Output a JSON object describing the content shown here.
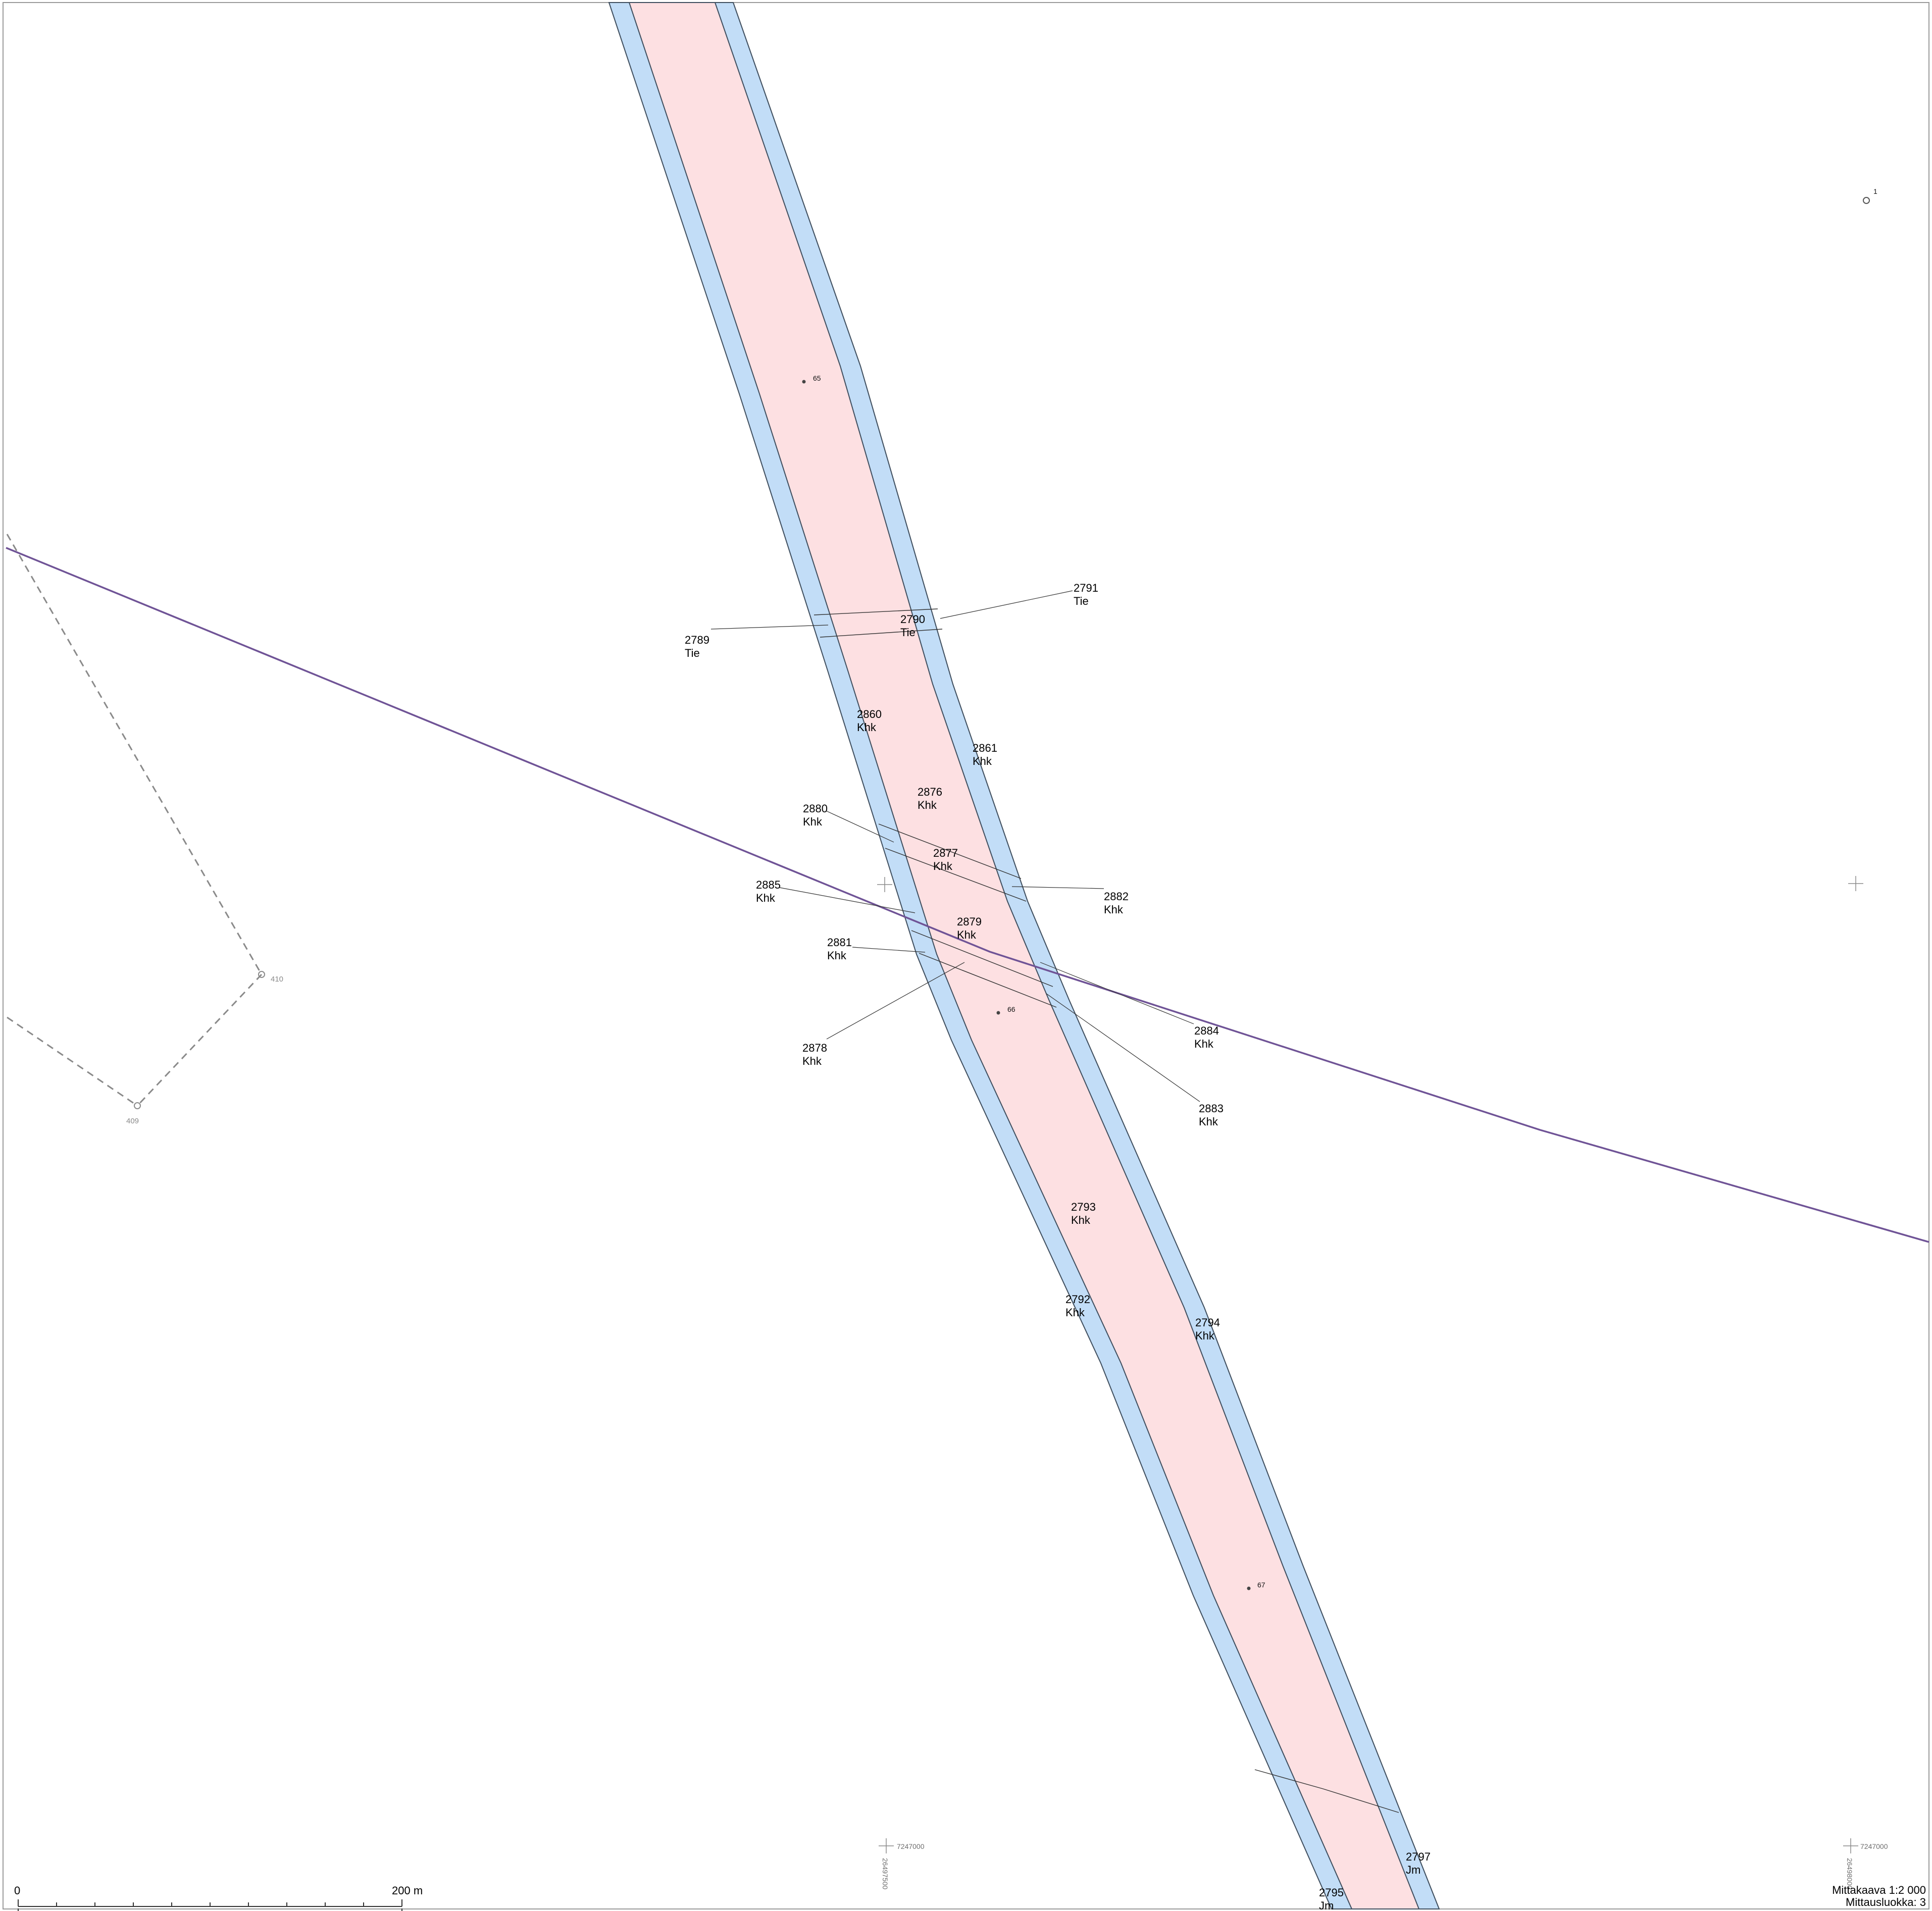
{
  "map": {
    "colors": {
      "road_outer": "#c2ddf7",
      "road_inner": "#fde0e2",
      "road_edge": "#3f4e5e",
      "boundary": "#6f5396",
      "dashed": "#8a8a8a",
      "frame": "#9a9a9a"
    },
    "parcels": [
      {
        "id": "2789",
        "type": "Tie"
      },
      {
        "id": "2790",
        "type": "Tie"
      },
      {
        "id": "2791",
        "type": "Tie"
      },
      {
        "id": "2860",
        "type": "Khk"
      },
      {
        "id": "2861",
        "type": "Khk"
      },
      {
        "id": "2876",
        "type": "Khk"
      },
      {
        "id": "2880",
        "type": "Khk"
      },
      {
        "id": "2877",
        "type": "Khk"
      },
      {
        "id": "2882",
        "type": "Khk"
      },
      {
        "id": "2885",
        "type": "Khk"
      },
      {
        "id": "2879",
        "type": "Khk"
      },
      {
        "id": "2881",
        "type": "Khk"
      },
      {
        "id": "2884",
        "type": "Khk"
      },
      {
        "id": "2878",
        "type": "Khk"
      },
      {
        "id": "2883",
        "type": "Khk"
      },
      {
        "id": "2793",
        "type": "Khk"
      },
      {
        "id": "2792",
        "type": "Khk"
      },
      {
        "id": "2794",
        "type": "Khk"
      },
      {
        "id": "2797",
        "type": "Jm"
      },
      {
        "id": "2795",
        "type": "Jm"
      }
    ],
    "points": [
      {
        "label": "65"
      },
      {
        "label": "66"
      },
      {
        "label": "67"
      },
      {
        "label": "1"
      }
    ],
    "boundary_markers": [
      {
        "label": "410"
      },
      {
        "label": "409"
      }
    ],
    "grid_coords": {
      "north_1": "7247000",
      "north_2": "7247000",
      "east_1": "26497500",
      "east_2": "26498000"
    },
    "scale_bar": {
      "start_label": "0",
      "end_label": "200 m"
    },
    "info": {
      "scale_text": "Mittakaava 1:2 000",
      "class_text": "Mittausluokka: 3"
    }
  }
}
